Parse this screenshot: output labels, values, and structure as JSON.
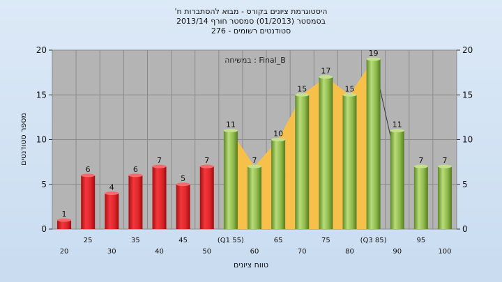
{
  "chart_data": {
    "type": "bar",
    "title_lines": [
      "'היסטוגרמת ציונים בקורס - מבוא להסתברות ח",
      "בסמסטר  (01/2013)  סמסטר חורף  2013/14",
      "סטודנטים רשומים - 276"
    ],
    "annotation": "במשיחה : Final_B",
    "xlabel": "טווח ציונים",
    "ylabel": "מספר סטודנטים",
    "ylim": [
      0,
      20
    ],
    "yticks": [
      0,
      5,
      10,
      15,
      20
    ],
    "categories": [
      "20",
      "25",
      "30",
      "35",
      "40",
      "45",
      "50",
      "(Q1 55)",
      "60",
      "65",
      "70",
      "75",
      "80",
      "(Q3 85)",
      "90",
      "95",
      "100"
    ],
    "values": [
      1,
      6,
      4,
      6,
      7,
      5,
      7,
      11,
      7,
      10,
      15,
      17,
      15,
      19,
      11,
      7,
      7
    ],
    "bar_colors": [
      "red",
      "red",
      "red",
      "red",
      "red",
      "red",
      "red",
      "green",
      "green",
      "green",
      "green",
      "green",
      "green",
      "green",
      "green",
      "green",
      "green"
    ],
    "interquartile_range": [
      "(Q1 55)",
      "(Q3 85)"
    ],
    "colors": {
      "red_bar": "#e0262a",
      "green_bar": "#8db84a",
      "iqr_area": "#f7c04a",
      "plot_bg": "#b4b4b4"
    },
    "grid": true
  }
}
